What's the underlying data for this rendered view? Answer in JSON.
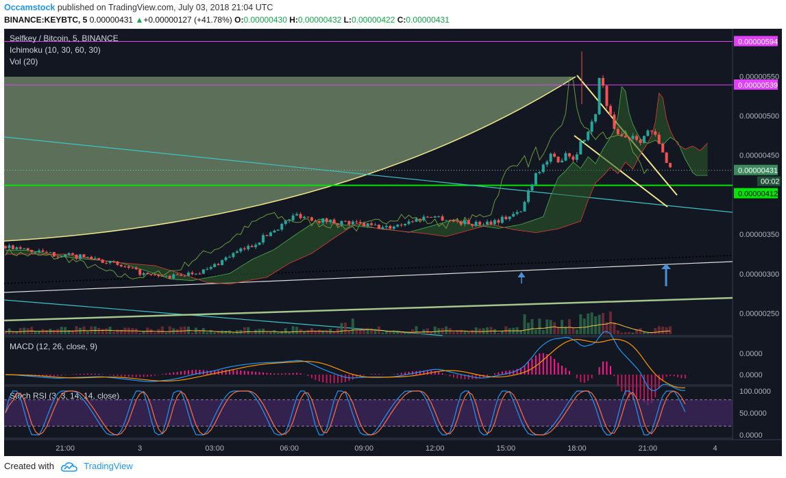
{
  "header": {
    "author": "Occamstock",
    "published_text": "published on TradingView.com, July 03, 2018 21:04 UTC",
    "symbol": "BINANCE:KEYBTC, 5",
    "last": "0.00000431",
    "change_arrow": "▲",
    "change": "+0.00000127 (+41.78%)",
    "o_label": "O:",
    "o": "0.00000430",
    "h_label": "H:",
    "h": "0.00000432",
    "l_label": "L:",
    "l": "0.00000422",
    "c_label": "C:",
    "c": "0.00000431"
  },
  "legend": {
    "title": "Selfkey / Bitcoin, 5, BINANCE",
    "ichimoku": "Ichimoku (10, 30, 60, 30)",
    "vol": "Vol (20)",
    "macd": "MACD (12, 26, close, 9)",
    "stoch": "Stoch RSI (3, 3, 14, 14, close)"
  },
  "price_tags": {
    "hline_top": "0.00000594",
    "hline_mid": "0.00000539",
    "last_price": "0.00000431",
    "countdown": "00:02",
    "support": "0.00000412"
  },
  "footer": {
    "created_with": "Created with",
    "brand": "TradingView"
  },
  "colors": {
    "background": "#131722",
    "hline_magenta": "#e040fb",
    "support_green": "#00e600",
    "up_candle": "#26a69a",
    "down_candle": "#ef5350",
    "wedge_yellow": "#f0e68c",
    "arrow_blue": "#4a90d9"
  },
  "chart_data": {
    "type": "candlestick",
    "price_axis": {
      "ticks": [
        "0.00000550",
        "0.00000500",
        "0.00000450",
        "0.00000350",
        "0.00000300",
        "0.00000250"
      ],
      "range": [
        2.22e-06,
        6.1e-06
      ]
    },
    "time_axis": {
      "ticks": [
        "21:00",
        "3",
        "03:00",
        "06:00",
        "09:00",
        "12:00",
        "15:00",
        "18:00",
        "21:00",
        "4"
      ]
    },
    "horizontal_lines": [
      5.94e-06,
      5.39e-06,
      4.12e-06
    ],
    "price_path": [
      [
        0,
        3.35e-06
      ],
      [
        6,
        3.25e-06
      ],
      [
        12,
        3.2e-06
      ],
      [
        16,
        3.08e-06
      ],
      [
        19,
        2.98e-06
      ],
      [
        22,
        2.96e-06
      ],
      [
        27,
        3.05e-06
      ],
      [
        30,
        3.23e-06
      ],
      [
        33,
        3.36e-06
      ],
      [
        36,
        3.56e-06
      ],
      [
        39,
        3.75e-06
      ],
      [
        42,
        3.68e-06
      ],
      [
        45,
        3.65e-06
      ],
      [
        48,
        3.62e-06
      ],
      [
        51,
        3.58e-06
      ],
      [
        54,
        3.66e-06
      ],
      [
        57,
        3.74e-06
      ],
      [
        60,
        3.67e-06
      ],
      [
        63,
        3.63e-06
      ],
      [
        66,
        3.68e-06
      ],
      [
        69,
        3.78e-06
      ],
      [
        70,
        4.05e-06
      ],
      [
        71,
        4.28e-06
      ],
      [
        72,
        4.37e-06
      ],
      [
        73,
        4.48e-06
      ],
      [
        74,
        4.4e-06
      ],
      [
        75,
        4.55e-06
      ],
      [
        76,
        4.46e-06
      ],
      [
        77,
        4.65e-06
      ],
      [
        78,
        4.8e-06
      ],
      [
        78.8,
        4.95e-06
      ],
      [
        79.3,
        5.25e-06
      ],
      [
        79.6,
        5.55e-06
      ],
      [
        80.1,
        5.35e-06
      ],
      [
        80.6,
        5.05e-06
      ],
      [
        81.3,
        4.9e-06
      ],
      [
        82,
        4.78e-06
      ],
      [
        83,
        4.72e-06
      ],
      [
        84,
        4.76e-06
      ],
      [
        85,
        4.7e-06
      ],
      [
        86,
        4.8e-06
      ],
      [
        87,
        4.74e-06
      ],
      [
        88,
        4.52e-06
      ],
      [
        88.6,
        4.42e-06
      ],
      [
        89.2,
        4.31e-06
      ]
    ],
    "macd": {
      "ticks": [
        "0.0000",
        "0.0000"
      ]
    },
    "stoch_rsi": {
      "ticks": [
        "100.0000",
        "50.0000",
        "0.0000"
      ],
      "bands": [
        80,
        20
      ]
    }
  }
}
